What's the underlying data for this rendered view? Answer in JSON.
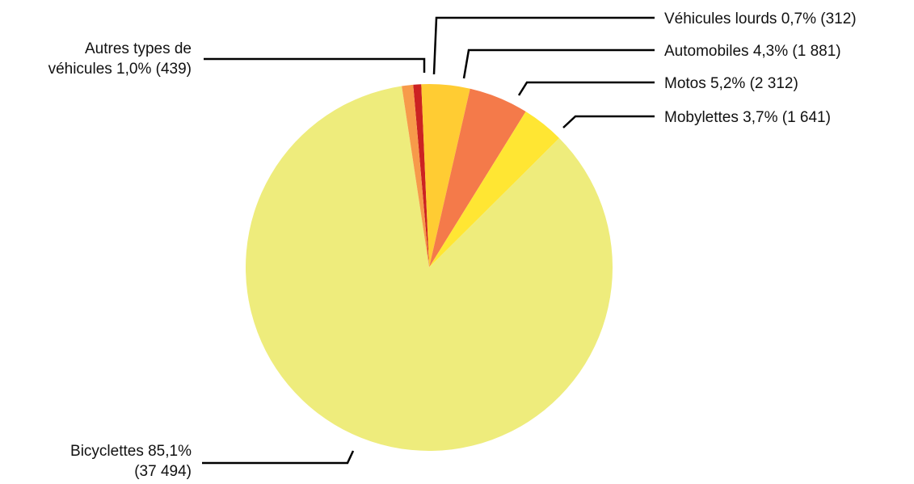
{
  "chart_data": {
    "type": "pie",
    "slices": [
      {
        "key": "heavy",
        "label_lines": [
          "Véhicules lourds 0,7% (312)"
        ],
        "value": 312,
        "percent": 0.7,
        "color": "#cc2222"
      },
      {
        "key": "cars",
        "label_lines": [
          "Automobiles 4,3% (1 881)"
        ],
        "value": 1881,
        "percent": 4.3,
        "color": "#ffcc33"
      },
      {
        "key": "motos",
        "label_lines": [
          "Motos 5,2% (2 312)"
        ],
        "value": 2312,
        "percent": 5.2,
        "color": "#f47a4a"
      },
      {
        "key": "mopeds",
        "label_lines": [
          "Mobylettes 3,7% (1 641)"
        ],
        "value": 1641,
        "percent": 3.7,
        "color": "#ffe633"
      },
      {
        "key": "bicycles",
        "label_lines": [
          "Bicyclettes 85,1%",
          "(37 494)"
        ],
        "value": 37494,
        "percent": 85.1,
        "color": "#eeec7c"
      },
      {
        "key": "other",
        "label_lines": [
          "Autres types de",
          "véhicules 1,0% (439)"
        ],
        "value": 439,
        "percent": 1.0,
        "color": "#f79a4a"
      }
    ]
  }
}
